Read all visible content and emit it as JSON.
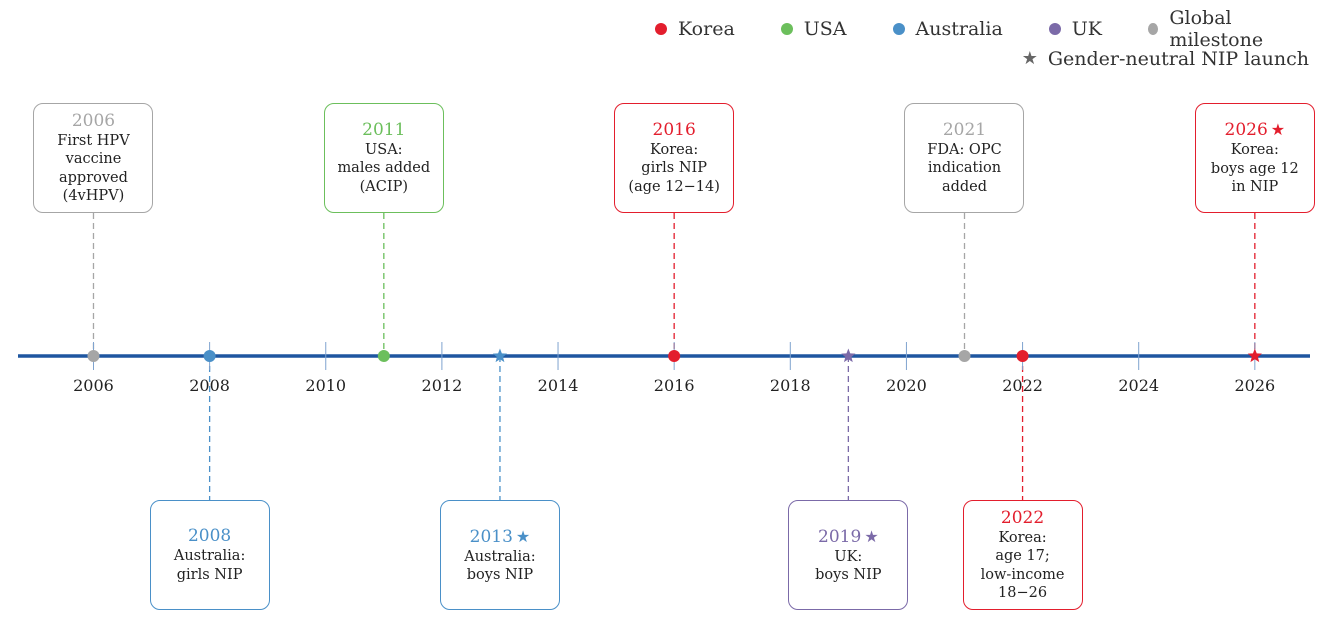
{
  "colors": {
    "korea": "#e31e2d",
    "usa": "#6cbf5c",
    "australia": "#4a90c8",
    "uk": "#7b6aa8",
    "global": "#a6a6a6",
    "axis": "#1e56a0",
    "star_legend": "#6b6b6b"
  },
  "legend": [
    {
      "label": "Korea",
      "color_key": "korea",
      "shape": "dot"
    },
    {
      "label": "USA",
      "color_key": "usa",
      "shape": "dot"
    },
    {
      "label": "Australia",
      "color_key": "australia",
      "shape": "dot"
    },
    {
      "label": "UK",
      "color_key": "uk",
      "shape": "dot"
    },
    {
      "label": "Global milestone",
      "color_key": "global",
      "shape": "dot"
    },
    {
      "label": "Gender-neutral NIP launch",
      "color_key": "star_legend",
      "shape": "star"
    }
  ],
  "axis": {
    "year_min": 2004.7,
    "year_max": 2026.95,
    "ticks": [
      "2006",
      "2008",
      "2010",
      "2012",
      "2014",
      "2016",
      "2018",
      "2020",
      "2022",
      "2024",
      "2026"
    ]
  },
  "events": [
    {
      "year": 2006,
      "year_label": "2006",
      "text": "First HPV\nvaccine\napproved\n(4vHPV)",
      "group": "global",
      "marker": "dot",
      "position": "above"
    },
    {
      "year": 2008,
      "year_label": "2008",
      "text": "Australia:\ngirls NIP",
      "group": "australia",
      "marker": "dot",
      "position": "below"
    },
    {
      "year": 2011,
      "year_label": "2011",
      "text": "USA:\nmales added\n(ACIP)",
      "group": "usa",
      "marker": "dot",
      "position": "above"
    },
    {
      "year": 2013,
      "year_label": "2013",
      "text": "Australia:\nboys NIP",
      "group": "australia",
      "marker": "star",
      "position": "below"
    },
    {
      "year": 2016,
      "year_label": "2016",
      "text": "Korea:\ngirls NIP\n(age 12−14)",
      "group": "korea",
      "marker": "dot",
      "position": "above"
    },
    {
      "year": 2019,
      "year_label": "2019",
      "text": "UK:\nboys NIP",
      "group": "uk",
      "marker": "star",
      "position": "below"
    },
    {
      "year": 2021,
      "year_label": "2021",
      "text": "FDA: OPC\nindication\nadded",
      "group": "global",
      "marker": "dot",
      "position": "above"
    },
    {
      "year": 2022,
      "year_label": "2022",
      "text": "Korea:\nage 17;\nlow-income\n18−26",
      "group": "korea",
      "marker": "dot",
      "position": "below"
    },
    {
      "year": 2026,
      "year_label": "2026",
      "text": "Korea:\nboys age 12\nin NIP",
      "group": "korea",
      "marker": "star",
      "position": "above"
    }
  ]
}
